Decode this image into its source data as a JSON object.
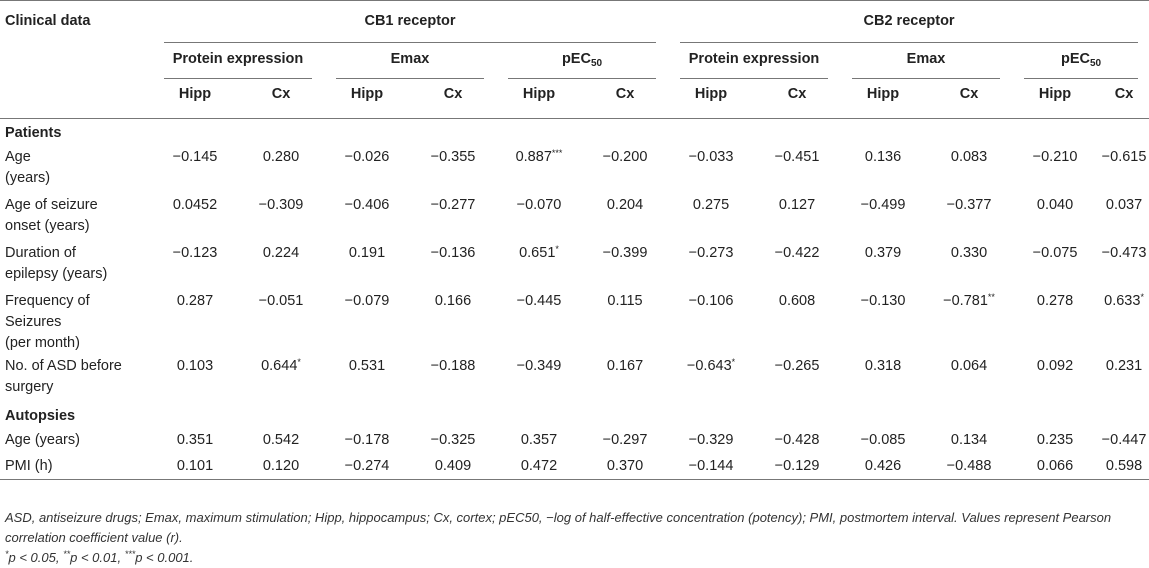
{
  "table": {
    "header": {
      "clinical_data": "Clinical data",
      "cb1": "CB1 receptor",
      "cb2": "CB2 receptor",
      "protein_expression": "Protein expression",
      "emax": "Emax",
      "pec_base": "pEC",
      "pec_sub": "50",
      "hipp": "Hipp",
      "cx": "Cx"
    },
    "sections": [
      {
        "title": "Patients",
        "rows": [
          {
            "label": "Age",
            "label2": "(years)",
            "cells": [
              {
                "v": "−0.145"
              },
              {
                "v": "0.280"
              },
              {
                "v": "−0.026"
              },
              {
                "v": "−0.355"
              },
              {
                "v": "0.887",
                "sig": "***"
              },
              {
                "v": "−0.200"
              },
              {
                "v": "−0.033"
              },
              {
                "v": "−0.451"
              },
              {
                "v": "0.136"
              },
              {
                "v": "0.083"
              },
              {
                "v": "−0.210"
              },
              {
                "v": "−0.615"
              }
            ]
          },
          {
            "label": "Age of seizure",
            "label2": "onset (years)",
            "cells": [
              {
                "v": "0.0452"
              },
              {
                "v": "−0.309"
              },
              {
                "v": "−0.406"
              },
              {
                "v": "−0.277"
              },
              {
                "v": "−0.070"
              },
              {
                "v": "0.204"
              },
              {
                "v": "0.275"
              },
              {
                "v": "0.127"
              },
              {
                "v": "−0.499"
              },
              {
                "v": "−0.377"
              },
              {
                "v": "0.040"
              },
              {
                "v": "0.037"
              }
            ]
          },
          {
            "label": "Duration of",
            "label2": "epilepsy (years)",
            "cells": [
              {
                "v": "−0.123"
              },
              {
                "v": "0.224"
              },
              {
                "v": "0.191"
              },
              {
                "v": "−0.136"
              },
              {
                "v": "0.651",
                "sig": "*"
              },
              {
                "v": "−0.399"
              },
              {
                "v": "−0.273"
              },
              {
                "v": "−0.422"
              },
              {
                "v": "0.379"
              },
              {
                "v": "0.330"
              },
              {
                "v": "−0.075"
              },
              {
                "v": "−0.473"
              }
            ]
          },
          {
            "label": "Frequency of",
            "label2": "Seizures",
            "label3": "(per month)",
            "cells": [
              {
                "v": "0.287"
              },
              {
                "v": "−0.051"
              },
              {
                "v": "−0.079"
              },
              {
                "v": "0.166"
              },
              {
                "v": "−0.445"
              },
              {
                "v": "0.115"
              },
              {
                "v": "−0.106"
              },
              {
                "v": "0.608"
              },
              {
                "v": "−0.130"
              },
              {
                "v": "−0.781",
                "sig": "**"
              },
              {
                "v": "0.278"
              },
              {
                "v": "0.633",
                "sig": "*"
              }
            ]
          },
          {
            "label": "No. of ASD before",
            "label2": "surgery",
            "cells": [
              {
                "v": "0.103"
              },
              {
                "v": "0.644",
                "sig": "*"
              },
              {
                "v": "0.531"
              },
              {
                "v": "−0.188"
              },
              {
                "v": "−0.349"
              },
              {
                "v": "0.167"
              },
              {
                "v": "−0.643",
                "sig": "*"
              },
              {
                "v": "−0.265"
              },
              {
                "v": "0.318"
              },
              {
                "v": "0.064"
              },
              {
                "v": "0.092"
              },
              {
                "v": "0.231"
              }
            ]
          }
        ]
      },
      {
        "title": "Autopsies",
        "rows": [
          {
            "label": "Age (years)",
            "cells": [
              {
                "v": "0.351"
              },
              {
                "v": "0.542"
              },
              {
                "v": "−0.178"
              },
              {
                "v": "−0.325"
              },
              {
                "v": "0.357"
              },
              {
                "v": "−0.297"
              },
              {
                "v": "−0.329"
              },
              {
                "v": "−0.428"
              },
              {
                "v": "−0.085"
              },
              {
                "v": "0.134"
              },
              {
                "v": "0.235"
              },
              {
                "v": "−0.447"
              }
            ]
          },
          {
            "label": "PMI (h)",
            "cells": [
              {
                "v": "0.101"
              },
              {
                "v": "0.120"
              },
              {
                "v": "−0.274"
              },
              {
                "v": "0.409"
              },
              {
                "v": "0.472"
              },
              {
                "v": "0.370"
              },
              {
                "v": "−0.144"
              },
              {
                "v": "−0.129"
              },
              {
                "v": "0.426"
              },
              {
                "v": "−0.488"
              },
              {
                "v": "0.066"
              },
              {
                "v": "0.598"
              }
            ]
          }
        ]
      }
    ]
  },
  "footnotes": {
    "abbreviations": "ASD, antiseizure drugs; Emax, maximum stimulation; Hipp, hippocampus; Cx, cortex; pEC50, −log of half-effective concentration (potency); PMI, postmortem interval. Values represent Pearson correlation coefficient value (r).",
    "significance": [
      {
        "sym": "*",
        "text": "p < 0.05, "
      },
      {
        "sym": "**",
        "text": "p < 0.01, "
      },
      {
        "sym": "***",
        "text": "p < 0.001."
      }
    ]
  }
}
